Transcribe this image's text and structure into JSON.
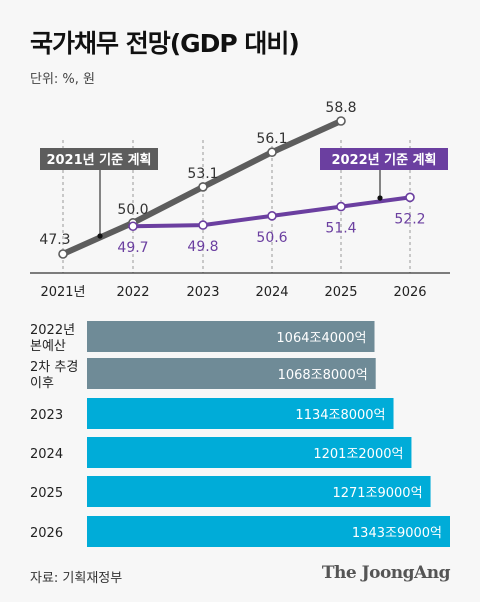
{
  "title": "국가채무 전망(GDP 대비)",
  "unit": "단위: %, 원",
  "source": "자료: 기획재정부",
  "brand": "The JoongAng",
  "colors": {
    "plan2021": "#5d5d5d",
    "plan2022": "#6b3fa0",
    "bar_budget": "#6f8b97",
    "bar_forecast": "#00acd8",
    "grid": "#9a9a9a"
  },
  "chart_data": [
    {
      "type": "line",
      "x": [
        "2021년",
        "2022",
        "2023",
        "2024",
        "2025",
        "2026"
      ],
      "ylim": [
        46,
        60
      ],
      "series": [
        {
          "name": "2021년 기준 계획",
          "x": [
            "2021년",
            "2022",
            "2023",
            "2024",
            "2025"
          ],
          "values": [
            47.3,
            50.0,
            53.1,
            56.1,
            58.8
          ],
          "labels": [
            "47.3",
            "50.0",
            "53.1",
            "56.1",
            "58.8"
          ]
        },
        {
          "name": "2022년 기준 계획",
          "x": [
            "2022",
            "2023",
            "2024",
            "2025",
            "2026"
          ],
          "values": [
            49.7,
            49.8,
            50.6,
            51.4,
            52.2
          ],
          "labels": [
            "49.7",
            "49.8",
            "50.6",
            "51.4",
            "52.2"
          ]
        }
      ]
    },
    {
      "type": "bar",
      "orientation": "horizontal",
      "categories": [
        [
          "2022년",
          "본예산"
        ],
        [
          "2차 추경",
          "이후"
        ],
        [
          "2023"
        ],
        [
          "2024"
        ],
        [
          "2025"
        ],
        [
          "2026"
        ]
      ],
      "values": [
        10644000,
        10688000,
        11348000,
        12012000,
        12719000,
        13439000
      ],
      "value_unit": "억원",
      "labels": [
        "1064조4000억",
        "1068조8000억",
        "1134조8000억",
        "1201조2000억",
        "1271조9000억",
        "1343조9000억"
      ]
    }
  ]
}
